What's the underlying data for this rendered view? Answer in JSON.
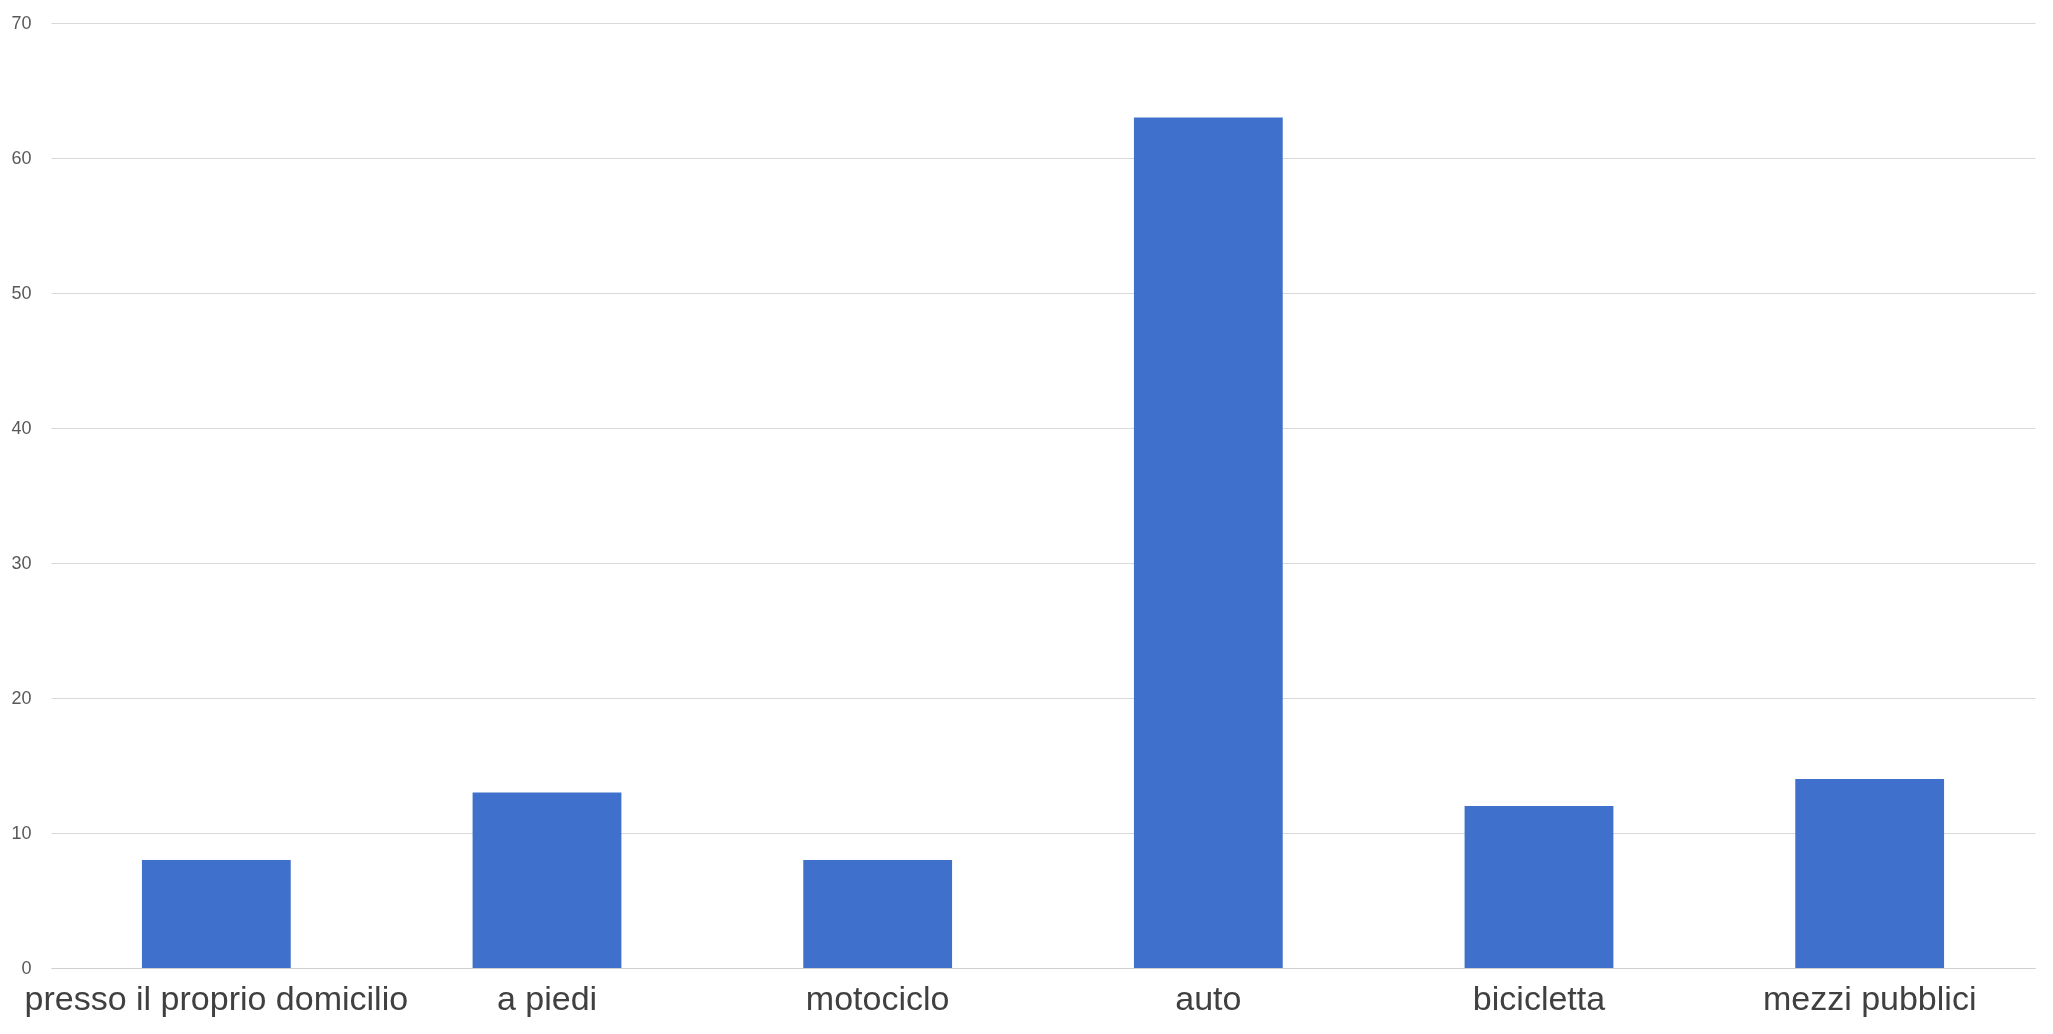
{
  "chart_data": {
    "type": "bar",
    "categories": [
      "presso il proprio domicilio",
      "a piedi",
      "motociclo",
      "auto",
      "bicicletta",
      "mezzi pubblici"
    ],
    "values": [
      8,
      13,
      8,
      63,
      12,
      14
    ],
    "color": "#3f70cc",
    "ylim": [
      0,
      70
    ],
    "yticks": [
      0,
      10,
      20,
      30,
      40,
      50,
      60,
      70
    ],
    "grid": "y"
  }
}
